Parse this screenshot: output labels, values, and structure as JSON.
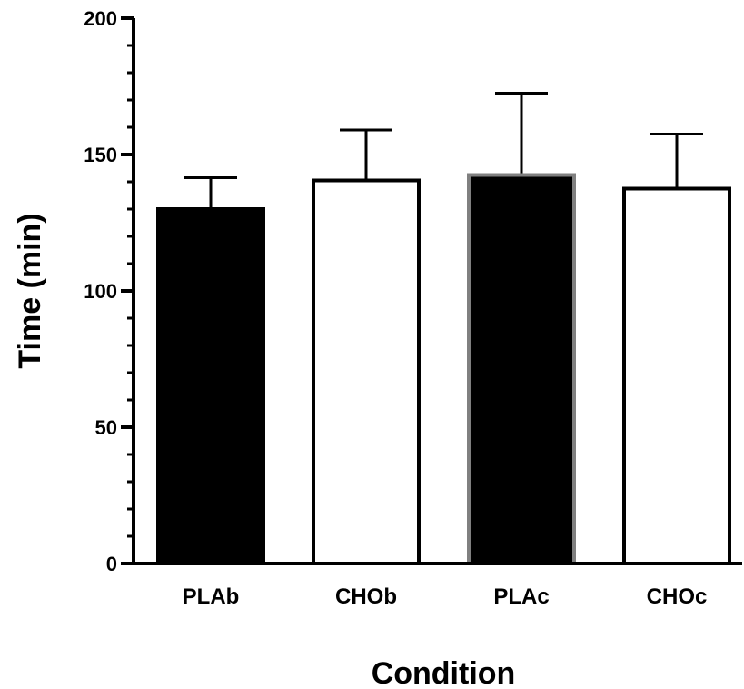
{
  "chart_data": {
    "type": "bar",
    "title": "",
    "xlabel": "Condition",
    "ylabel": "Time (min)",
    "categories": [
      "PLAb",
      "CHOb",
      "PLAc",
      "CHOc"
    ],
    "values": [
      130,
      140.5,
      142.5,
      137.5
    ],
    "error_upper": [
      141.5,
      159,
      172.5,
      157.5
    ],
    "bar_fills": [
      "#000000",
      "#ffffff",
      "#000000",
      "#ffffff"
    ],
    "bar_strokes": [
      "#000000",
      "#000000",
      "#808080",
      "#000000"
    ],
    "ylim": [
      0,
      200
    ],
    "yticks": [
      0,
      50,
      100,
      150,
      200
    ],
    "ytick_labels": [
      "0",
      "50",
      "100",
      "150",
      "200"
    ],
    "minor_tick_step": 10,
    "grid": false,
    "legend": "none"
  }
}
